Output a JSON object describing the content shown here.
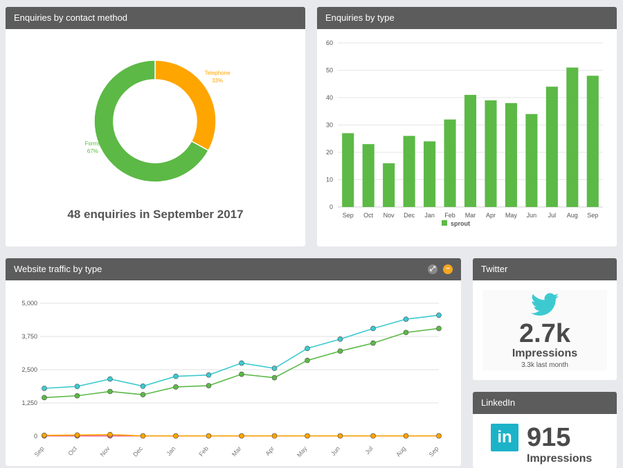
{
  "panels": {
    "contact": {
      "title": "Enquiries by contact method",
      "summary": "48 enquiries in September 2017"
    },
    "type": {
      "title": "Enquiries by type"
    },
    "traffic": {
      "title": "Website traffic by type"
    },
    "twitter": {
      "title": "Twitter",
      "value": "2.7k",
      "label": "Impressions",
      "sub": "3.3k last month"
    },
    "linkedin": {
      "title": "LinkedIn",
      "value": "915",
      "label": "Impressions",
      "logo_text": "in"
    }
  },
  "colors": {
    "header": "#5c5c5c",
    "green": "#5cb946",
    "orange": "#ffa500",
    "cyan": "#3ccad0",
    "pink": "#e85a8a",
    "twitter": "#3ccad0",
    "linkedin": "#1cb3c8"
  },
  "icons": {
    "expand": "expand-icon",
    "minimize": "minimize-icon",
    "twitter": "twitter-bird-icon",
    "linkedin": "linkedin-logo-icon"
  },
  "chart_data": [
    {
      "type": "pie",
      "donut": true,
      "slices": [
        {
          "label": "Telephone",
          "value": 33,
          "display": "33%",
          "color": "#ffa500"
        },
        {
          "label": "Forms",
          "value": 67,
          "display": "67%",
          "color": "#5cb946"
        }
      ]
    },
    {
      "type": "bar",
      "categories": [
        "Sep",
        "Oct",
        "Nov",
        "Dec",
        "Jan",
        "Feb",
        "Mar",
        "Apr",
        "May",
        "Jun",
        "Jul",
        "Aug",
        "Sep"
      ],
      "series": [
        {
          "name": "sprout",
          "color": "#5cb946",
          "values": [
            27,
            23,
            16,
            26,
            24,
            32,
            41,
            39,
            38,
            34,
            44,
            51,
            48
          ]
        }
      ],
      "ylim": [
        0,
        60
      ],
      "yticks": [
        0,
        10,
        20,
        30,
        40,
        50,
        60
      ],
      "legend": "bottom",
      "grid": true
    },
    {
      "type": "line",
      "categories": [
        "Sep",
        "Oct",
        "Nov",
        "Dec",
        "Jan",
        "Feb",
        "Mar",
        "Apr",
        "May",
        "Jun",
        "Jul",
        "Aug",
        "Sep"
      ],
      "series": [
        {
          "color": "#3ccad0",
          "values": [
            1800,
            1870,
            2150,
            1880,
            2250,
            2300,
            2750,
            2550,
            3300,
            3650,
            4050,
            4400,
            4550
          ]
        },
        {
          "color": "#5cb946",
          "values": [
            1450,
            1520,
            1680,
            1560,
            1850,
            1900,
            2330,
            2200,
            2850,
            3200,
            3500,
            3900,
            4050
          ]
        },
        {
          "color": "#ffa500",
          "values": [
            30,
            40,
            60,
            10,
            10,
            10,
            10,
            10,
            10,
            10,
            10,
            10,
            10
          ]
        },
        {
          "color": "#e85a8a",
          "values": [
            10,
            10,
            10,
            10,
            10,
            10,
            10,
            10,
            10,
            10,
            10,
            10,
            10
          ]
        }
      ],
      "ylim": [
        0,
        5000
      ],
      "yticks": [
        "0",
        "1,250",
        "2,500",
        "3,750",
        "5,000"
      ],
      "ytick_values": [
        0,
        1250,
        2500,
        3750,
        5000
      ],
      "grid": true
    }
  ]
}
